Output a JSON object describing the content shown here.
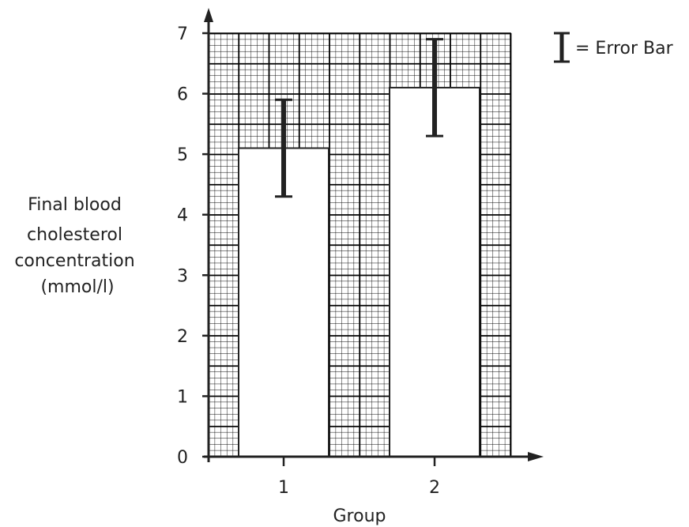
{
  "chart_data": {
    "type": "bar",
    "categories": [
      "1",
      "2"
    ],
    "values": [
      5.1,
      6.1
    ],
    "error_low": [
      4.3,
      5.3
    ],
    "error_high": [
      5.9,
      6.9
    ],
    "xlabel": "Group",
    "ylabel_lines": [
      "Final blood",
      "cholesterol",
      "concentration",
      "(mmol/l)"
    ],
    "ylim": [
      0,
      7
    ],
    "yticks": [
      0,
      1,
      2,
      3,
      4,
      5,
      6,
      7
    ],
    "grid": true,
    "legend": {
      "label": "= Error Bar",
      "placement": "top-right"
    },
    "colors": {
      "grid": "#000000",
      "bar_fill": "#ffffff",
      "error_bar": "#222222",
      "axis": "#222222"
    }
  }
}
